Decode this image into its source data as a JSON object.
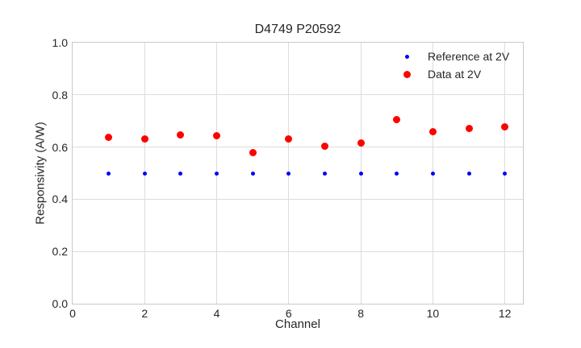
{
  "chart_data": {
    "type": "scatter",
    "title": "D4749 P20592",
    "xlabel": "Channel",
    "ylabel": "Responsivity (A/W)",
    "xlim": [
      0,
      12.5
    ],
    "ylim": [
      0.0,
      1.0
    ],
    "x_ticks": [
      0,
      2,
      4,
      6,
      8,
      10,
      12
    ],
    "x_tick_labels": [
      "0",
      "2",
      "4",
      "6",
      "8",
      "10",
      "12"
    ],
    "y_ticks": [
      0.0,
      0.2,
      0.4,
      0.6,
      0.8,
      1.0
    ],
    "y_tick_labels": [
      "0.0",
      "0.2",
      "0.4",
      "0.6",
      "0.8",
      "1.0"
    ],
    "grid": true,
    "legend": {
      "position": "upper right",
      "entries": [
        "Reference at 2V",
        "Data at 2V"
      ]
    },
    "x": [
      1,
      2,
      3,
      4,
      5,
      6,
      7,
      8,
      9,
      10,
      11,
      12
    ],
    "series": [
      {
        "name": "Reference at 2V",
        "color": "#0000ff",
        "marker_size": 5,
        "legend_marker_size": 5,
        "values": [
          0.5,
          0.5,
          0.5,
          0.5,
          0.5,
          0.5,
          0.5,
          0.5,
          0.5,
          0.5,
          0.5,
          0.5
        ]
      },
      {
        "name": "Data at 2V",
        "color": "#ff0000",
        "marker_size": 9,
        "legend_marker_size": 9,
        "values": [
          0.636,
          0.632,
          0.648,
          0.645,
          0.578,
          0.63,
          0.602,
          0.616,
          0.704,
          0.66,
          0.672,
          0.676
        ]
      }
    ],
    "colors": {
      "grid": "#dcdcdc",
      "spine": "#c9c9c9",
      "text": "#262626",
      "background": "#ffffff"
    }
  }
}
